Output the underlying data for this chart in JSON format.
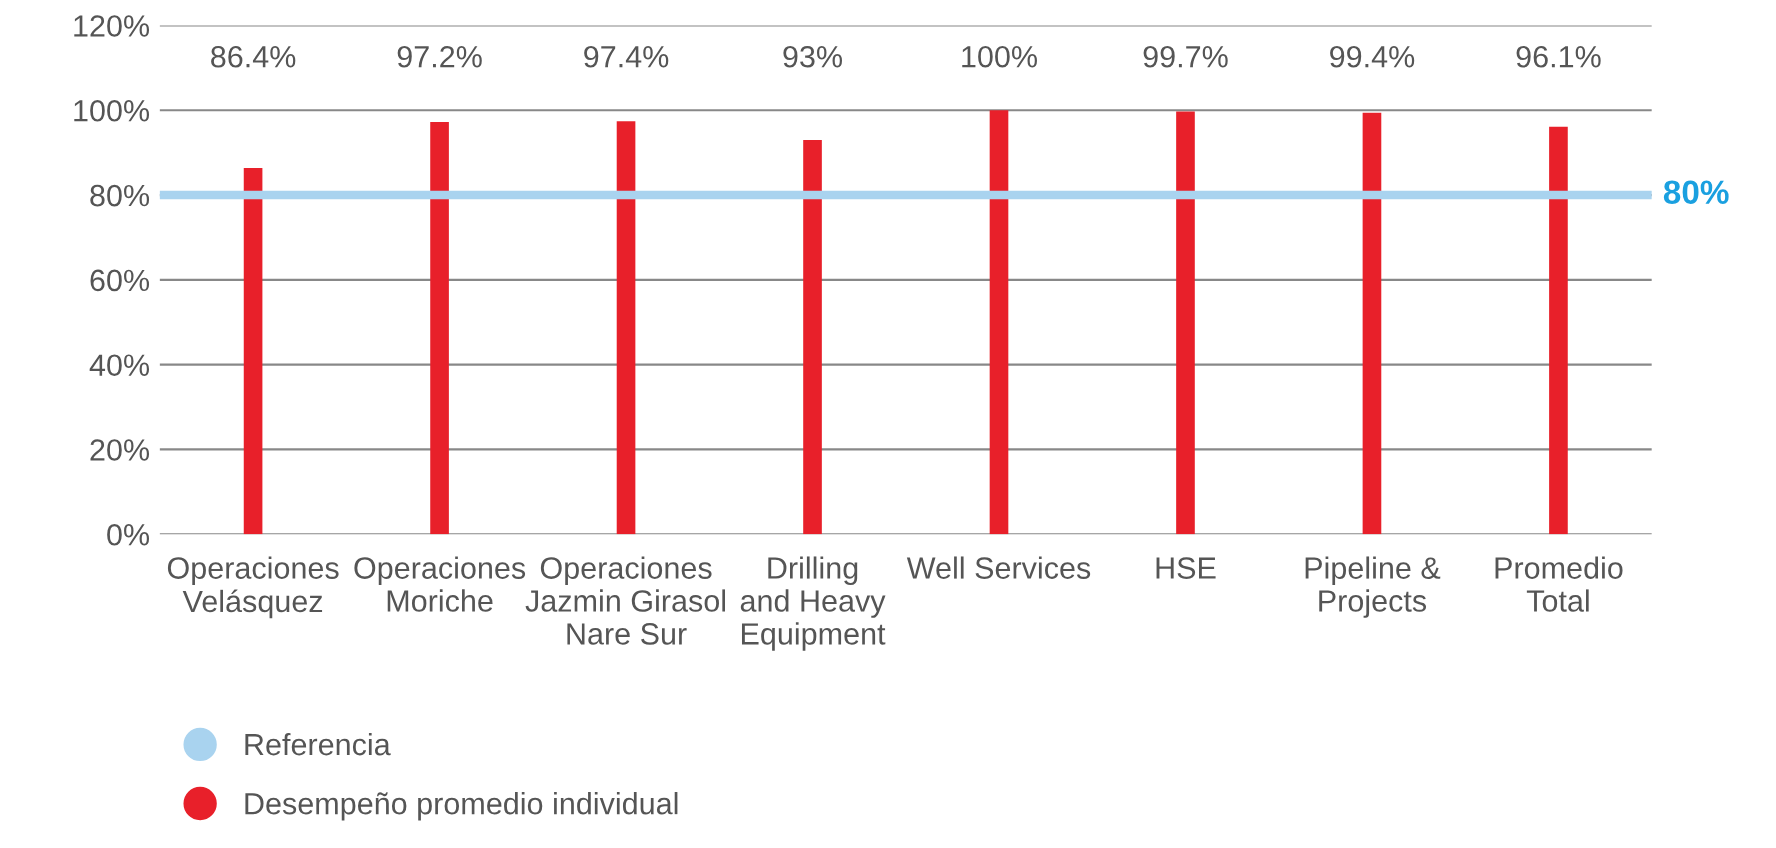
{
  "chart_data": {
    "type": "bar",
    "categories": [
      "Operaciones\nVelásquez",
      "Operaciones\nMoriche",
      "Operaciones\nJazmin Girasol\nNare Sur",
      "Drilling\nand Heavy\nEquipment",
      "Well Services",
      "HSE",
      "Pipeline &\nProjects",
      "Promedio\nTotal"
    ],
    "series": [
      {
        "name": "Desempeño promedio individual",
        "color": "#e8202a",
        "values": [
          86.4,
          97.2,
          97.4,
          93,
          100,
          99.7,
          99.4,
          96.1
        ]
      }
    ],
    "value_labels": [
      "86.4%",
      "97.2%",
      "97.4%",
      "93%",
      "100%",
      "99.7%",
      "99.4%",
      "96.1%"
    ],
    "ref_lines": [
      {
        "axis": "y",
        "value": 80,
        "label": "Referencia",
        "color": "#a9d3ef"
      }
    ],
    "annotations": [
      "80%"
    ],
    "ylim": [
      0,
      120
    ],
    "yticks": [
      {
        "value": 0,
        "label": "0%"
      },
      {
        "value": 20,
        "label": "20%"
      },
      {
        "value": 40,
        "label": "40%"
      },
      {
        "value": 60,
        "label": "60%"
      },
      {
        "value": 80,
        "label": "80%"
      },
      {
        "value": 100,
        "label": "100%"
      },
      {
        "value": 120,
        "label": "120%"
      }
    ],
    "grid": "y",
    "legend": "bottom left",
    "marker": "circle"
  }
}
